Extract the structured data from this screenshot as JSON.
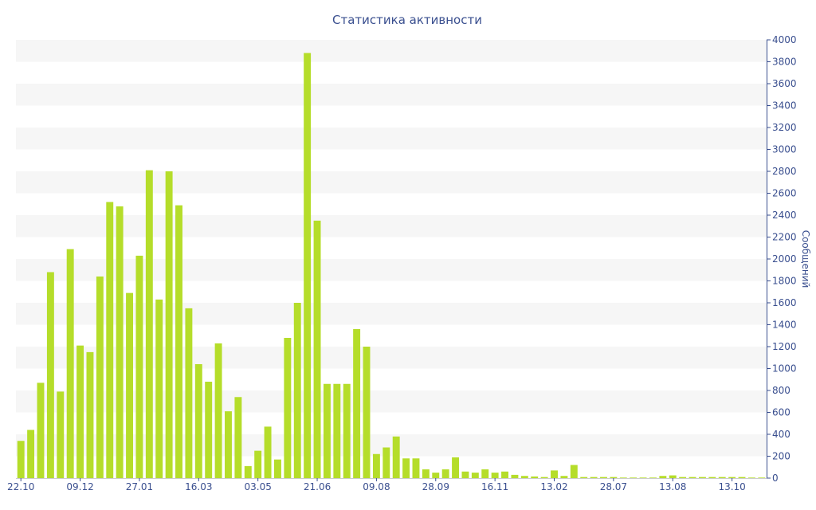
{
  "chart_data": {
    "type": "bar",
    "title": "Статистика активности",
    "xlabel": "",
    "ylabel": "Сообщений",
    "ylim": [
      0,
      4000
    ],
    "y_ticks": [
      0,
      200,
      400,
      600,
      800,
      1000,
      1200,
      1400,
      1600,
      1800,
      2000,
      2200,
      2400,
      2600,
      2800,
      3000,
      3200,
      3400,
      3600,
      3800,
      4000
    ],
    "y_axis_position": "right",
    "grid": "alternating horizontal bands",
    "legend": "none",
    "bar_color": "#b5dd2a",
    "band_color": "#f6f6f6",
    "text_color": "#3a4f8f",
    "x_tick_labels": [
      {
        "label": "22.10",
        "index": 0
      },
      {
        "label": "09.12",
        "index": 6
      },
      {
        "label": "27.01",
        "index": 12
      },
      {
        "label": "16.03",
        "index": 18
      },
      {
        "label": "03.05",
        "index": 24
      },
      {
        "label": "21.06",
        "index": 30
      },
      {
        "label": "09.08",
        "index": 36
      },
      {
        "label": "28.09",
        "index": 42
      },
      {
        "label": "16.11",
        "index": 48
      },
      {
        "label": "13.02",
        "index": 54
      },
      {
        "label": "28.07",
        "index": 60
      },
      {
        "label": "13.08",
        "index": 66
      },
      {
        "label": "13.10",
        "index": 72
      }
    ],
    "values": [
      340,
      440,
      870,
      1880,
      790,
      2090,
      1210,
      1150,
      1840,
      2520,
      2480,
      1690,
      2030,
      2810,
      1630,
      2800,
      2490,
      1550,
      1040,
      880,
      1230,
      610,
      740,
      110,
      250,
      470,
      170,
      1280,
      1600,
      3880,
      2350,
      860,
      860,
      860,
      1360,
      1200,
      220,
      280,
      380,
      180,
      180,
      80,
      50,
      80,
      190,
      60,
      50,
      80,
      50,
      60,
      30,
      20,
      15,
      10,
      70,
      20,
      120,
      10,
      10,
      10,
      10,
      5,
      5,
      5,
      5,
      20,
      25,
      10,
      10,
      10,
      10,
      10,
      10,
      10,
      5,
      5
    ]
  }
}
